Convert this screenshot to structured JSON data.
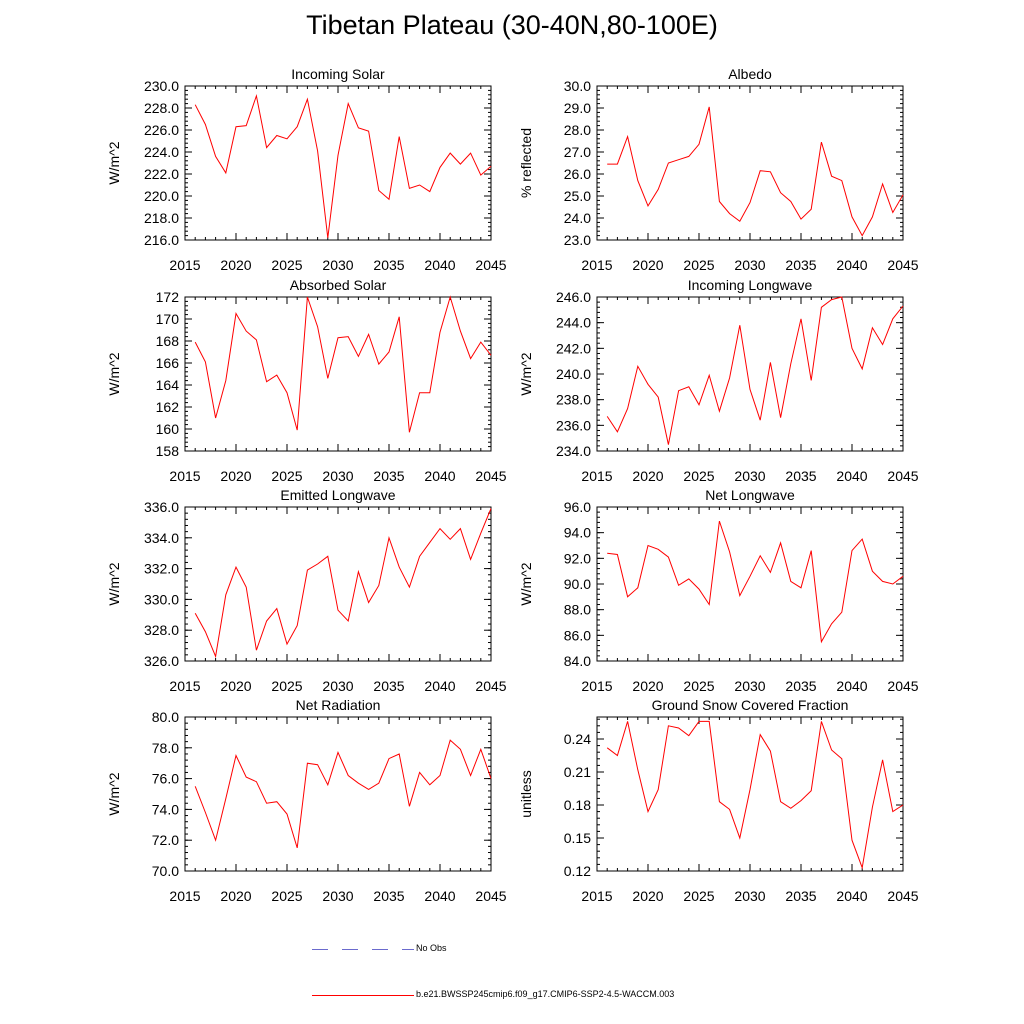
{
  "page": {
    "title": "Tibetan Plateau (30-40N,80-100E)"
  },
  "legend": {
    "no_obs_label": "No Obs",
    "no_obs_color": "#6a6acd",
    "model_label": "b.e21.BWSSP245cmip6.f09_g17.CMIP6-SSP2-4.5-WACCM.003",
    "model_color": "#ff0000"
  },
  "chart_data": [
    {
      "type": "line",
      "title": "Incoming Solar",
      "ylabel": "W/m^2",
      "xlim": [
        2015,
        2045
      ],
      "ylim": [
        216,
        230
      ],
      "xticks": [
        "2015",
        "2020",
        "2025",
        "2030",
        "2035",
        "2040",
        "2045"
      ],
      "yticks": [
        "216.0",
        "218.0",
        "220.0",
        "222.0",
        "224.0",
        "226.0",
        "228.0",
        "230.0"
      ],
      "x": [
        2016,
        2017,
        2018,
        2019,
        2020,
        2021,
        2022,
        2023,
        2024,
        2025,
        2026,
        2027,
        2028,
        2029,
        2030,
        2031,
        2032,
        2033,
        2034,
        2035,
        2036,
        2037,
        2038,
        2039,
        2040,
        2041,
        2042,
        2043,
        2044,
        2045
      ],
      "series": [
        {
          "values": [
            228.3,
            226.5,
            223.6,
            222.1,
            226.3,
            226.4,
            229.1,
            224.4,
            225.5,
            225.2,
            226.3,
            228.8,
            224.1,
            216.2,
            223.7,
            228.4,
            226.2,
            225.9,
            220.5,
            219.7,
            225.4,
            220.7,
            221.0,
            220.4,
            222.6,
            223.9,
            222.9,
            223.9,
            221.9,
            222.7
          ]
        }
      ]
    },
    {
      "type": "line",
      "title": "Albedo",
      "ylabel": "% reflected",
      "xlim": [
        2015,
        2045
      ],
      "ylim": [
        23,
        30
      ],
      "xticks": [
        "2015",
        "2020",
        "2025",
        "2030",
        "2035",
        "2040",
        "2045"
      ],
      "yticks": [
        "23.0",
        "24.0",
        "25.0",
        "26.0",
        "27.0",
        "28.0",
        "29.0",
        "30.0"
      ],
      "x": [
        2016,
        2017,
        2018,
        2019,
        2020,
        2021,
        2022,
        2023,
        2024,
        2025,
        2026,
        2027,
        2028,
        2029,
        2030,
        2031,
        2032,
        2033,
        2034,
        2035,
        2036,
        2037,
        2038,
        2039,
        2040,
        2041,
        2042,
        2043,
        2044,
        2045
      ],
      "series": [
        {
          "values": [
            26.45,
            26.45,
            27.7,
            25.7,
            24.55,
            25.3,
            26.5,
            26.65,
            26.8,
            27.35,
            29.05,
            24.75,
            24.2,
            23.85,
            24.7,
            26.15,
            26.1,
            25.15,
            24.75,
            23.95,
            24.4,
            27.45,
            25.9,
            25.7,
            24.05,
            23.2,
            24.05,
            25.55,
            24.25,
            25.05
          ]
        }
      ]
    },
    {
      "type": "line",
      "title": "Absorbed Solar",
      "ylabel": "W/m^2",
      "xlim": [
        2015,
        2045
      ],
      "ylim": [
        158,
        172
      ],
      "xticks": [
        "2015",
        "2020",
        "2025",
        "2030",
        "2035",
        "2040",
        "2045"
      ],
      "yticks": [
        "158",
        "160",
        "162",
        "164",
        "166",
        "168",
        "170",
        "172"
      ],
      "x": [
        2016,
        2017,
        2018,
        2019,
        2020,
        2021,
        2022,
        2023,
        2024,
        2025,
        2026,
        2027,
        2028,
        2029,
        2030,
        2031,
        2032,
        2033,
        2034,
        2035,
        2036,
        2037,
        2038,
        2039,
        2040,
        2041,
        2042,
        2043,
        2044,
        2045
      ],
      "series": [
        {
          "values": [
            167.9,
            166.1,
            161.0,
            164.4,
            170.5,
            168.9,
            168.1,
            164.3,
            164.9,
            163.3,
            159.9,
            172.0,
            169.3,
            164.6,
            168.3,
            168.4,
            166.6,
            168.6,
            165.9,
            167.0,
            170.2,
            159.7,
            163.3,
            163.3,
            168.8,
            172.0,
            168.9,
            166.4,
            167.9,
            166.7
          ]
        }
      ]
    },
    {
      "type": "line",
      "title": "Incoming Longwave",
      "ylabel": "W/m^2",
      "xlim": [
        2015,
        2045
      ],
      "ylim": [
        234,
        246
      ],
      "xticks": [
        "2015",
        "2020",
        "2025",
        "2030",
        "2035",
        "2040",
        "2045"
      ],
      "yticks": [
        "234.0",
        "236.0",
        "238.0",
        "240.0",
        "242.0",
        "244.0",
        "246.0"
      ],
      "x": [
        2016,
        2017,
        2018,
        2019,
        2020,
        2021,
        2022,
        2023,
        2024,
        2025,
        2026,
        2027,
        2028,
        2029,
        2030,
        2031,
        2032,
        2033,
        2034,
        2035,
        2036,
        2037,
        2038,
        2039,
        2040,
        2041,
        2042,
        2043,
        2044,
        2045
      ],
      "series": [
        {
          "values": [
            236.7,
            235.5,
            237.3,
            240.6,
            239.2,
            238.2,
            234.5,
            238.7,
            239.0,
            237.6,
            239.9,
            237.1,
            239.7,
            243.8,
            238.8,
            236.4,
            240.9,
            236.6,
            240.8,
            244.3,
            239.5,
            245.2,
            245.8,
            246.0,
            242.0,
            240.4,
            243.6,
            242.3,
            244.3,
            245.3
          ]
        }
      ]
    },
    {
      "type": "line",
      "title": "Emitted Longwave",
      "ylabel": "W/m^2",
      "xlim": [
        2015,
        2045
      ],
      "ylim": [
        326,
        336
      ],
      "xticks": [
        "2015",
        "2020",
        "2025",
        "2030",
        "2035",
        "2040",
        "2045"
      ],
      "yticks": [
        "326.0",
        "328.0",
        "330.0",
        "332.0",
        "334.0",
        "336.0"
      ],
      "x": [
        2016,
        2017,
        2018,
        2019,
        2020,
        2021,
        2022,
        2023,
        2024,
        2025,
        2026,
        2027,
        2028,
        2029,
        2030,
        2031,
        2032,
        2033,
        2034,
        2035,
        2036,
        2037,
        2038,
        2039,
        2040,
        2041,
        2042,
        2043,
        2044,
        2045
      ],
      "series": [
        {
          "values": [
            329.1,
            327.9,
            326.3,
            330.3,
            332.1,
            330.8,
            326.7,
            328.6,
            329.4,
            327.1,
            328.3,
            331.9,
            332.3,
            332.8,
            329.3,
            328.6,
            331.8,
            329.8,
            330.9,
            334.0,
            332.1,
            330.8,
            332.8,
            333.7,
            334.6,
            333.9,
            334.6,
            332.6,
            334.3,
            335.9
          ]
        }
      ]
    },
    {
      "type": "line",
      "title": "Net Longwave",
      "ylabel": "W/m^2",
      "xlim": [
        2015,
        2045
      ],
      "ylim": [
        84,
        96
      ],
      "xticks": [
        "2015",
        "2020",
        "2025",
        "2030",
        "2035",
        "2040",
        "2045"
      ],
      "yticks": [
        "84.0",
        "86.0",
        "88.0",
        "90.0",
        "92.0",
        "94.0",
        "96.0"
      ],
      "x": [
        2016,
        2017,
        2018,
        2019,
        2020,
        2021,
        2022,
        2023,
        2024,
        2025,
        2026,
        2027,
        2028,
        2029,
        2030,
        2031,
        2032,
        2033,
        2034,
        2035,
        2036,
        2037,
        2038,
        2039,
        2040,
        2041,
        2042,
        2043,
        2044,
        2045
      ],
      "series": [
        {
          "values": [
            92.4,
            92.3,
            89.0,
            89.7,
            93.0,
            92.7,
            92.1,
            89.9,
            90.4,
            89.6,
            88.4,
            94.9,
            92.5,
            89.1,
            90.6,
            92.2,
            90.9,
            93.2,
            90.2,
            89.7,
            92.6,
            85.5,
            86.9,
            87.8,
            92.6,
            93.5,
            91.0,
            90.2,
            90.0,
            90.6
          ]
        }
      ]
    },
    {
      "type": "line",
      "title": "Net Radiation",
      "ylabel": "W/m^2",
      "xlim": [
        2015,
        2045
      ],
      "ylim": [
        70,
        80
      ],
      "xticks": [
        "2015",
        "2020",
        "2025",
        "2030",
        "2035",
        "2040",
        "2045"
      ],
      "yticks": [
        "70.0",
        "72.0",
        "74.0",
        "76.0",
        "78.0",
        "80.0"
      ],
      "x": [
        2016,
        2017,
        2018,
        2019,
        2020,
        2021,
        2022,
        2023,
        2024,
        2025,
        2026,
        2027,
        2028,
        2029,
        2030,
        2031,
        2032,
        2033,
        2034,
        2035,
        2036,
        2037,
        2038,
        2039,
        2040,
        2041,
        2042,
        2043,
        2044,
        2045
      ],
      "series": [
        {
          "values": [
            75.5,
            73.8,
            72.0,
            74.7,
            77.5,
            76.1,
            75.8,
            74.4,
            74.5,
            73.7,
            71.5,
            77.0,
            76.9,
            75.6,
            77.7,
            76.2,
            75.7,
            75.3,
            75.7,
            77.3,
            77.6,
            74.2,
            76.4,
            75.6,
            76.2,
            78.5,
            77.9,
            76.2,
            77.9,
            76.0
          ]
        }
      ]
    },
    {
      "type": "line",
      "title": "Ground Snow Covered Fraction",
      "ylabel": "unitless",
      "xlim": [
        2015,
        2045
      ],
      "ylim": [
        0.12,
        0.26
      ],
      "xticks": [
        "2015",
        "2020",
        "2025",
        "2030",
        "2035",
        "2040",
        "2045"
      ],
      "yticks": [
        "0.12",
        "0.15",
        "0.18",
        "0.21",
        "0.24"
      ],
      "x": [
        2016,
        2017,
        2018,
        2019,
        2020,
        2021,
        2022,
        2023,
        2024,
        2025,
        2026,
        2027,
        2028,
        2029,
        2030,
        2031,
        2032,
        2033,
        2034,
        2035,
        2036,
        2037,
        2038,
        2039,
        2040,
        2041,
        2042,
        2043,
        2044,
        2045
      ],
      "series": [
        {
          "values": [
            0.232,
            0.225,
            0.256,
            0.212,
            0.174,
            0.194,
            0.252,
            0.25,
            0.243,
            0.256,
            0.256,
            0.183,
            0.176,
            0.15,
            0.194,
            0.244,
            0.229,
            0.183,
            0.177,
            0.184,
            0.193,
            0.256,
            0.23,
            0.222,
            0.148,
            0.123,
            0.178,
            0.221,
            0.174,
            0.18
          ]
        }
      ]
    }
  ]
}
